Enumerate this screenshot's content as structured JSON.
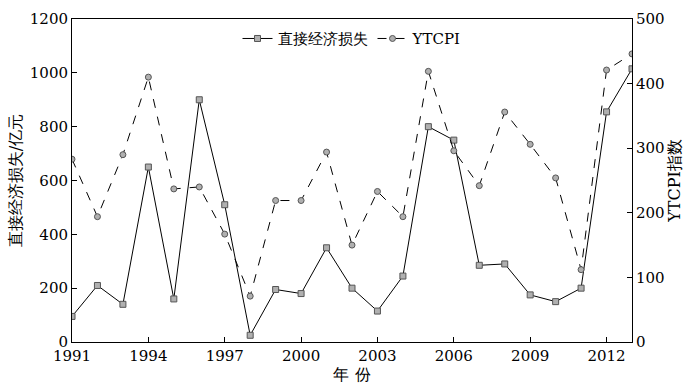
{
  "chart_data": {
    "type": "line",
    "x_label": "年 份",
    "y_label": "直接经济损失/亿元",
    "y2_label": "YTCPI指数",
    "x": [
      1991,
      1992,
      1993,
      1994,
      1995,
      1996,
      1997,
      1998,
      1999,
      2000,
      2001,
      2002,
      2003,
      2004,
      2005,
      2006,
      2007,
      2008,
      2009,
      2010,
      2011,
      2012,
      2013
    ],
    "xlim": [
      1991,
      2013
    ],
    "xticks": [
      1991,
      1994,
      1997,
      2000,
      2003,
      2006,
      2009,
      2012
    ],
    "ylim": [
      0,
      1200
    ],
    "yticks": [
      0,
      200,
      400,
      600,
      800,
      1000,
      1200
    ],
    "y2lim": [
      0,
      500
    ],
    "y2ticks": [
      0,
      100,
      200,
      300,
      400,
      500
    ],
    "grid": false,
    "legend": "top",
    "series": [
      {
        "name": "直接经济损失",
        "color": "#000000",
        "marker": "square",
        "line_style": "solid",
        "axis": "y",
        "values": [
          95,
          210,
          140,
          650,
          160,
          900,
          510,
          25,
          195,
          180,
          350,
          200,
          115,
          245,
          800,
          750,
          285,
          290,
          175,
          150,
          200,
          855,
          1015
        ]
      },
      {
        "name": "YTCPI",
        "color": "#000000",
        "marker": "circle",
        "line_style": "dash",
        "axis": "y2",
        "values": [
          283,
          194,
          290,
          410,
          237,
          240,
          167,
          71,
          219,
          219,
          294,
          150,
          233,
          194,
          419,
          296,
          242,
          356,
          306,
          254,
          112,
          421,
          446
        ]
      }
    ]
  }
}
